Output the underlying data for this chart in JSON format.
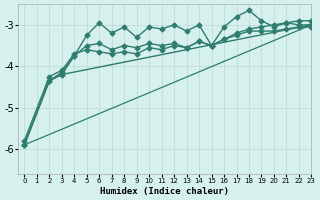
{
  "title": "",
  "xlabel": "Humidex (Indice chaleur)",
  "ylabel": "",
  "bg_color": "#d6f0ee",
  "grid_color": "#c0dcd8",
  "line_color": "#2e7d6e",
  "xlim": [
    -0.5,
    23
  ],
  "ylim": [
    -6.6,
    -2.5
  ],
  "xticks": [
    0,
    1,
    2,
    3,
    4,
    5,
    6,
    7,
    8,
    9,
    10,
    11,
    12,
    13,
    14,
    15,
    16,
    17,
    18,
    19,
    20,
    21,
    22,
    23
  ],
  "yticks": [
    -6,
    -5,
    -4,
    -3
  ],
  "series": [
    {
      "x": [
        0,
        2,
        3,
        4,
        5,
        6,
        7,
        8,
        9,
        10,
        11,
        12,
        13,
        14,
        15,
        16,
        17,
        18,
        19,
        20,
        21,
        22,
        23
      ],
      "y": [
        -5.9,
        -4.35,
        -4.2,
        -3.75,
        -3.25,
        -2.95,
        -3.2,
        -3.05,
        -3.3,
        -3.05,
        -3.1,
        -3.0,
        -3.15,
        -3.0,
        -3.5,
        -3.05,
        -2.8,
        -2.65,
        -2.9,
        -3.05,
        -2.95,
        -3.0,
        -3.0
      ],
      "marker": "D",
      "markersize": 2.5,
      "linewidth": 1.0,
      "linestyle": "-"
    },
    {
      "x": [
        0,
        2,
        3,
        4,
        5,
        6,
        7,
        8,
        9,
        10,
        11,
        12,
        13,
        14,
        15,
        16,
        17,
        18,
        19,
        20,
        21,
        22,
        23
      ],
      "y": [
        -5.9,
        -4.35,
        -4.15,
        -3.75,
        -3.5,
        -3.45,
        -3.6,
        -3.5,
        -3.55,
        -3.45,
        -3.5,
        -3.45,
        -3.55,
        -3.4,
        -3.5,
        -3.35,
        -3.25,
        -3.15,
        -3.15,
        -3.15,
        -3.1,
        -3.05,
        -3.05
      ],
      "marker": "D",
      "markersize": 2.5,
      "linewidth": 1.0,
      "linestyle": "-"
    },
    {
      "x": [
        0,
        2,
        3,
        23
      ],
      "y": [
        -5.9,
        -4.35,
        -4.2,
        -3.0
      ],
      "marker": null,
      "markersize": 0,
      "linewidth": 1.0,
      "linestyle": "-"
    },
    {
      "x": [
        0,
        23
      ],
      "y": [
        -5.9,
        -3.0
      ],
      "marker": null,
      "markersize": 0,
      "linewidth": 0.9,
      "linestyle": "-"
    },
    {
      "x": [
        0,
        2,
        3,
        4,
        5,
        6,
        7,
        8,
        9,
        10,
        11,
        12,
        13,
        14,
        15,
        16,
        17,
        18,
        19,
        20,
        21,
        22,
        23
      ],
      "y": [
        -5.8,
        -4.25,
        -4.1,
        -3.7,
        -3.6,
        -3.65,
        -3.7,
        -3.65,
        -3.7,
        -3.55,
        -3.6,
        -3.5,
        -3.55,
        -3.4,
        -3.5,
        -3.35,
        -3.2,
        -3.1,
        -3.05,
        -3.0,
        -2.95,
        -2.9,
        -2.9
      ],
      "marker": "D",
      "markersize": 2.5,
      "linewidth": 1.0,
      "linestyle": "-"
    }
  ]
}
